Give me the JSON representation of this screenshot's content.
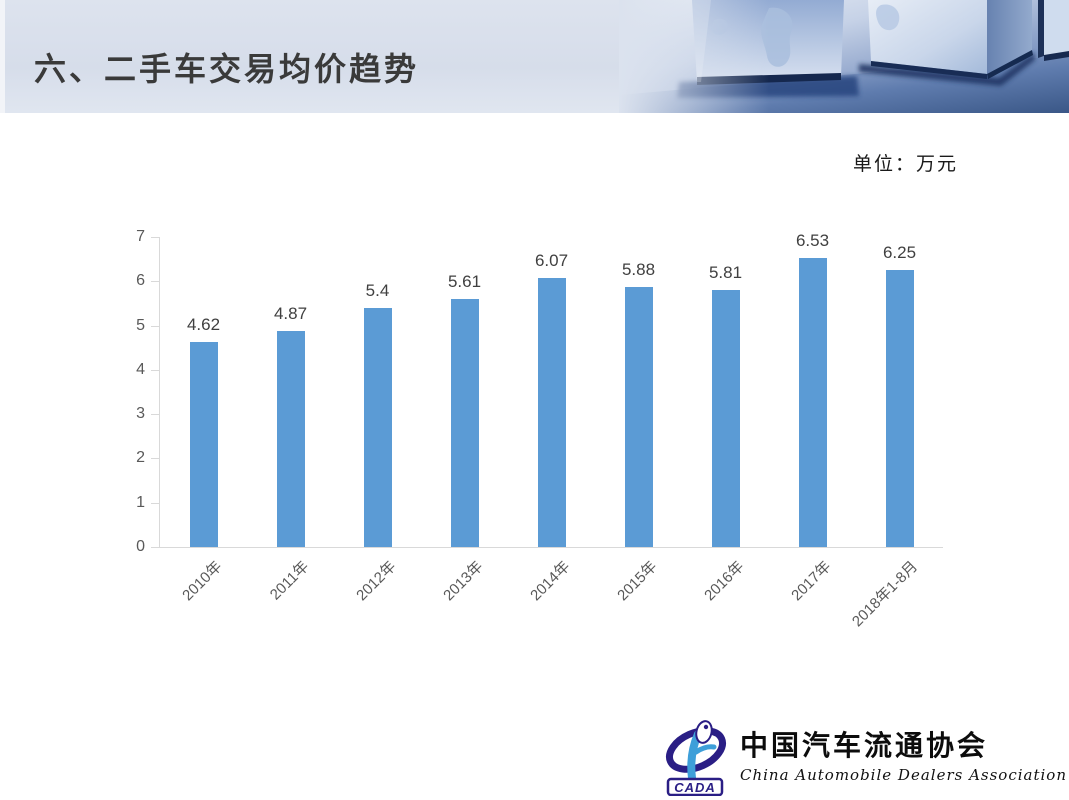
{
  "header": {
    "title": "六、二手车交易均价趋势"
  },
  "chart_data": {
    "type": "bar",
    "title": "",
    "unit_label": "单位：万元",
    "categories": [
      "2010年",
      "2011年",
      "2012年",
      "2013年",
      "2014年",
      "2015年",
      "2016年",
      "2017年",
      "2018年1-8月"
    ],
    "values": [
      4.62,
      4.87,
      5.4,
      5.61,
      6.07,
      5.88,
      5.81,
      6.53,
      6.25
    ],
    "xlabel": "",
    "ylabel": "",
    "ylim": [
      0,
      7
    ],
    "ytick_step": 1,
    "grid": false,
    "legend": false,
    "data_labels": true,
    "bar_color": "#5B9BD5",
    "axis_color": "#D9D9D9",
    "tick_label_color": "#595959",
    "data_label_color": "#404040"
  },
  "logo": {
    "acronym": "CADA",
    "chinese_name": "中国汽车流通协会",
    "english_name": "China Automobile Dealers Association"
  }
}
